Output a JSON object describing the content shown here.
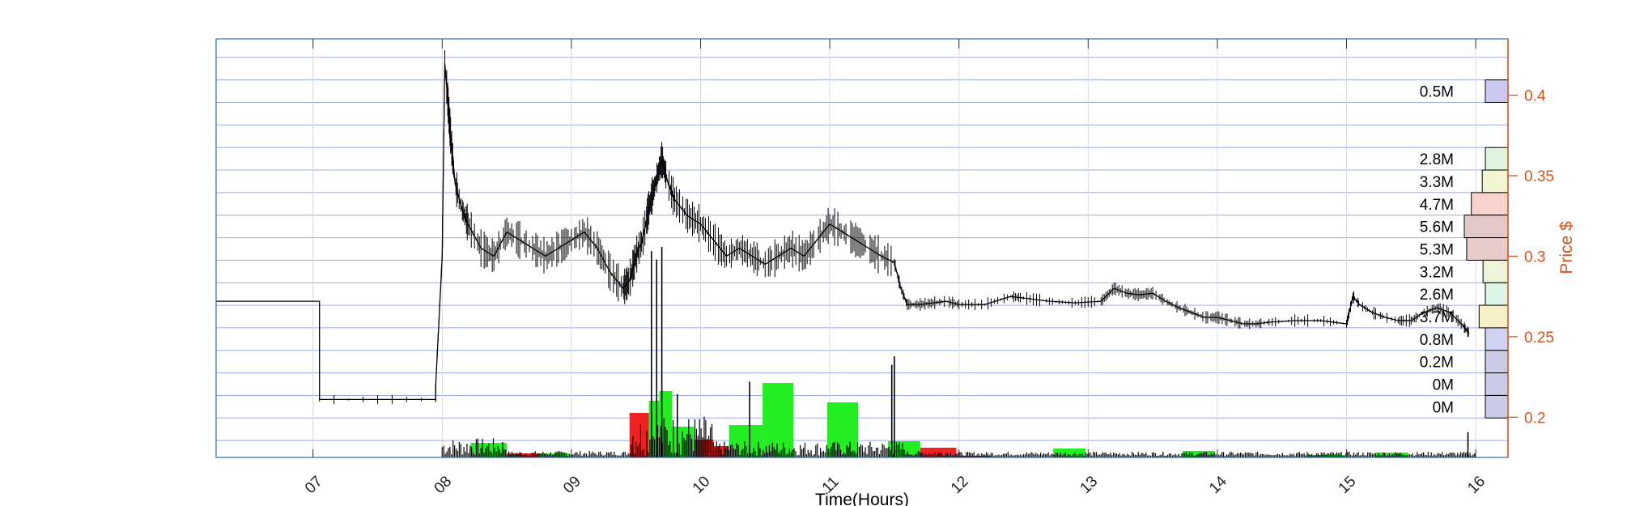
{
  "chart_data": {
    "type": "line",
    "title": "",
    "xlabel": "Time(Hours)",
    "ylabel": "Price $",
    "xlim": [
      6.25,
      16.25
    ],
    "ylim": [
      0.175,
      0.435
    ],
    "x_ticks": [
      "07",
      "08",
      "09",
      "10",
      "11",
      "12",
      "13",
      "14",
      "15",
      "16"
    ],
    "y_ticks": [
      0.2,
      0.25,
      0.3,
      0.35,
      0.4
    ],
    "grid": true,
    "colors": {
      "axes": "#2a6fb0",
      "right_axis": "#d95319",
      "price_line": "#000000",
      "hgrid": "#9aa8f0",
      "vgrid": "#d8d8d8",
      "buy_volume": "#22ee22",
      "sell_volume": "#ee2222"
    },
    "volume_profile": [
      {
        "label": "0.5M",
        "price_low": 0.3955,
        "price_high": 0.4095,
        "value": 0.5,
        "color": "#c9c9f2"
      },
      {
        "label": "2.8M",
        "price_low": 0.3535,
        "price_high": 0.3675,
        "value": 2.8,
        "color": "#ddf5dd"
      },
      {
        "label": "3.3M",
        "price_low": 0.3395,
        "price_high": 0.3535,
        "value": 3.3,
        "color": "#f2f5d2"
      },
      {
        "label": "4.7M",
        "price_low": 0.3255,
        "price_high": 0.3395,
        "value": 4.7,
        "color": "#f6d2cc"
      },
      {
        "label": "5.6M",
        "price_low": 0.3115,
        "price_high": 0.3255,
        "value": 5.6,
        "color": "#e2c8c8"
      },
      {
        "label": "5.3M",
        "price_low": 0.2975,
        "price_high": 0.3115,
        "value": 5.3,
        "color": "#e8cccc"
      },
      {
        "label": "3.2M",
        "price_low": 0.2835,
        "price_high": 0.2975,
        "value": 3.2,
        "color": "#eef5d8"
      },
      {
        "label": "2.6M",
        "price_low": 0.2695,
        "price_high": 0.2835,
        "value": 2.6,
        "color": "#dcf5e6"
      },
      {
        "label": "3.7M",
        "price_low": 0.2555,
        "price_high": 0.2695,
        "value": 3.7,
        "color": "#f6f0c8"
      },
      {
        "label": "0.8M",
        "price_low": 0.2415,
        "price_high": 0.2555,
        "value": 0.8,
        "color": "#cfd2f0"
      },
      {
        "label": "0.2M",
        "price_low": 0.2275,
        "price_high": 0.2415,
        "value": 0.2,
        "color": "#c9cbe8"
      },
      {
        "label": "0M",
        "price_low": 0.2135,
        "price_high": 0.2275,
        "value": 0.0,
        "color": "#c9cbe8"
      },
      {
        "label": "0M",
        "price_low": 0.1995,
        "price_high": 0.2135,
        "value": 0.0,
        "color": "#c9cbe8"
      }
    ],
    "price_series": {
      "name": "",
      "x": [
        6.25,
        7.05,
        7.05,
        7.95,
        7.95,
        8.0,
        8.02,
        8.05,
        8.07,
        8.1,
        8.15,
        8.2,
        8.3,
        8.4,
        8.5,
        8.6,
        8.7,
        8.8,
        8.9,
        9.0,
        9.1,
        9.2,
        9.3,
        9.4,
        9.45,
        9.5,
        9.55,
        9.6,
        9.65,
        9.7,
        9.75,
        9.8,
        9.9,
        10.0,
        10.1,
        10.2,
        10.3,
        10.4,
        10.5,
        10.6,
        10.7,
        10.8,
        10.9,
        11.0,
        11.1,
        11.2,
        11.3,
        11.4,
        11.5,
        11.55,
        11.6,
        11.7,
        11.8,
        11.9,
        12.0,
        12.2,
        12.4,
        12.5,
        12.7,
        12.9,
        13.1,
        13.2,
        13.3,
        13.4,
        13.5,
        13.6,
        13.7,
        13.8,
        13.9,
        14.0,
        14.1,
        14.2,
        14.3,
        14.4,
        14.6,
        14.8,
        15.0,
        15.05,
        15.1,
        15.2,
        15.3,
        15.4,
        15.5,
        15.6,
        15.7,
        15.8,
        15.9,
        15.95
      ],
      "y": [
        0.272,
        0.272,
        0.211,
        0.211,
        0.22,
        0.3,
        0.42,
        0.39,
        0.37,
        0.345,
        0.33,
        0.32,
        0.305,
        0.3,
        0.315,
        0.31,
        0.305,
        0.3,
        0.305,
        0.31,
        0.315,
        0.305,
        0.29,
        0.28,
        0.285,
        0.3,
        0.31,
        0.33,
        0.345,
        0.36,
        0.345,
        0.335,
        0.325,
        0.32,
        0.31,
        0.3,
        0.305,
        0.3,
        0.295,
        0.3,
        0.305,
        0.3,
        0.31,
        0.32,
        0.315,
        0.31,
        0.305,
        0.3,
        0.296,
        0.28,
        0.27,
        0.27,
        0.271,
        0.272,
        0.27,
        0.27,
        0.275,
        0.274,
        0.272,
        0.271,
        0.272,
        0.28,
        0.277,
        0.276,
        0.277,
        0.272,
        0.268,
        0.265,
        0.262,
        0.262,
        0.26,
        0.258,
        0.258,
        0.259,
        0.26,
        0.26,
        0.258,
        0.275,
        0.27,
        0.265,
        0.262,
        0.26,
        0.26,
        0.265,
        0.268,
        0.265,
        0.257,
        0.252
      ]
    },
    "volume_bars": {
      "buy": [
        {
          "x0": 8.22,
          "x1": 8.5,
          "height": 0.18
        },
        {
          "x0": 8.75,
          "x1": 8.98,
          "height": 0.05
        },
        {
          "x0": 9.68,
          "x1": 9.78,
          "height": 0.82
        },
        {
          "x0": 9.6,
          "x1": 9.7,
          "height": 0.7
        },
        {
          "x0": 9.78,
          "x1": 9.95,
          "height": 0.38
        },
        {
          "x0": 10.22,
          "x1": 10.48,
          "height": 0.4
        },
        {
          "x0": 10.48,
          "x1": 10.72,
          "height": 0.92
        },
        {
          "x0": 10.98,
          "x1": 11.22,
          "height": 0.68
        },
        {
          "x0": 11.45,
          "x1": 11.7,
          "height": 0.2
        },
        {
          "x0": 12.73,
          "x1": 12.98,
          "height": 0.11
        },
        {
          "x0": 13.73,
          "x1": 13.98,
          "height": 0.08
        },
        {
          "x0": 14.7,
          "x1": 14.98,
          "height": 0.03
        },
        {
          "x0": 15.22,
          "x1": 15.48,
          "height": 0.06
        }
      ],
      "sell": [
        {
          "x0": 8.5,
          "x1": 8.75,
          "height": 0.05
        },
        {
          "x0": 9.45,
          "x1": 9.6,
          "height": 0.55
        },
        {
          "x0": 9.95,
          "x1": 10.1,
          "height": 0.22
        },
        {
          "x0": 10.1,
          "x1": 10.22,
          "height": 0.14
        },
        {
          "x0": 11.7,
          "x1": 11.98,
          "height": 0.12
        },
        {
          "x0": 11.98,
          "x1": 12.25,
          "height": 0.02
        }
      ],
      "spikes": [
        {
          "x": 9.7,
          "height": 1.0
        },
        {
          "x": 9.62,
          "height": 0.98
        },
        {
          "x": 9.66,
          "height": 0.94
        },
        {
          "x": 11.5,
          "height": 0.48
        },
        {
          "x": 11.48,
          "height": 0.44
        },
        {
          "x": 10.38,
          "height": 0.36
        },
        {
          "x": 9.82,
          "height": 0.3
        },
        {
          "x": 15.94,
          "height": 0.12
        }
      ]
    }
  }
}
